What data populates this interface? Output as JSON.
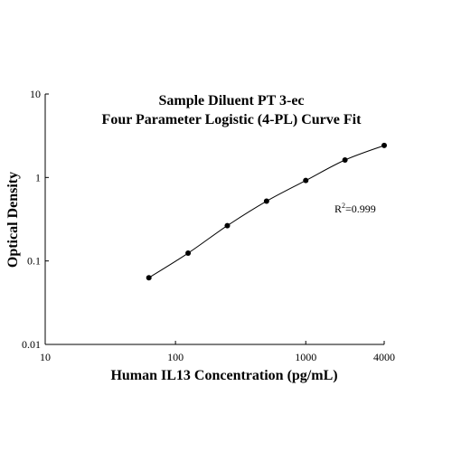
{
  "chart_data": {
    "type": "scatter",
    "title": "Sample Diluent PT 3-ec",
    "subtitle": "Four Parameter Logistic (4-PL) Curve Fit",
    "xlabel": "Human IL13 Concentration (pg/mL)",
    "ylabel": "Optical Density",
    "x_scale": "log",
    "y_scale": "log",
    "xlim": [
      10,
      4000
    ],
    "ylim": [
      0.01,
      10
    ],
    "x_ticks": [
      {
        "value": 10,
        "label": "10"
      },
      {
        "value": 100,
        "label": "100"
      },
      {
        "value": 1000,
        "label": "1000"
      },
      {
        "value": 4000,
        "label": "4000"
      }
    ],
    "y_ticks": [
      {
        "value": 0.01,
        "label": "0.01"
      },
      {
        "value": 0.1,
        "label": "0.1"
      },
      {
        "value": 1,
        "label": "1"
      },
      {
        "value": 10,
        "label": "10"
      }
    ],
    "grid": false,
    "legend": "none",
    "annotation": {
      "prefix": "R",
      "superscript": "2",
      "suffix": "=0.999"
    },
    "series": [
      {
        "points": [
          {
            "x": 62.5,
            "y": 0.063
          },
          {
            "x": 125,
            "y": 0.124
          },
          {
            "x": 250,
            "y": 0.265
          },
          {
            "x": 500,
            "y": 0.52
          },
          {
            "x": 1000,
            "y": 0.92
          },
          {
            "x": 2000,
            "y": 1.62
          },
          {
            "x": 4000,
            "y": 2.42
          }
        ],
        "fit": "4-PL",
        "color": "#000000"
      }
    ]
  }
}
